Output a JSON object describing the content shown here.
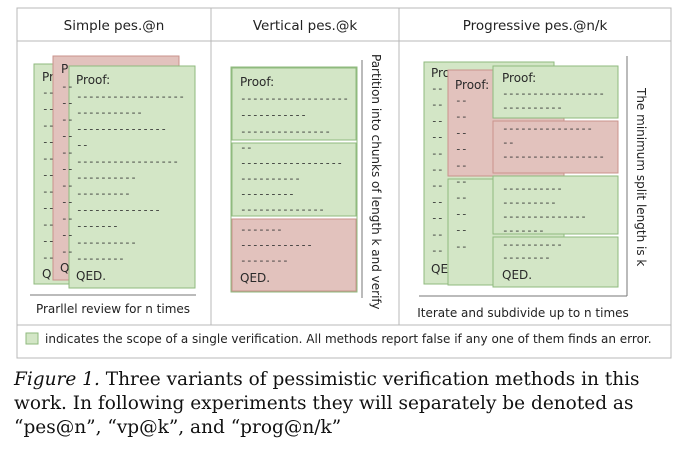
{
  "figure": {
    "panels": [
      {
        "title": "Simple pes.@n",
        "footer": "Prarllel review for n times",
        "proof_label": "Proof:",
        "qed_label": "QED.",
        "back_proof_fragments": [
          "Pr",
          "Pr"
        ],
        "back_qed_fragments": [
          "QE",
          "QE"
        ]
      },
      {
        "title": "Vertical pes.@k",
        "side_label": "Partition into chunks of length k and verify",
        "proof_label": "Proof:",
        "qed_label": "QED."
      },
      {
        "title": "Progressive pes.@n/k",
        "footer": "Iterate and subdivide up to n times",
        "side_label": "The minimum split length is k",
        "proof_label": "Proof:",
        "qed_label": "QED.",
        "back_proof_fragments": [
          "Pro",
          "Proof:"
        ],
        "back_qed_fragments": [
          "QEI"
        ]
      }
    ],
    "legend_text": "indicates the scope of a single verification. All methods report false if any one of them finds an error.",
    "colors": {
      "verify_fill": "#d3e6c6",
      "verify_stroke": "#8fba7e",
      "error_fill": "#e2c2bd",
      "error_stroke": "#c9938c",
      "frame": "#b8b8b8",
      "text": "#2a2a2a"
    }
  },
  "caption": {
    "label": "Figure 1.",
    "text": "Three variants of pessimistic verification methods in this work. In following experiments they will separately be denoted as “pes@n”, “vp@k”, and “prog@n/k”"
  }
}
